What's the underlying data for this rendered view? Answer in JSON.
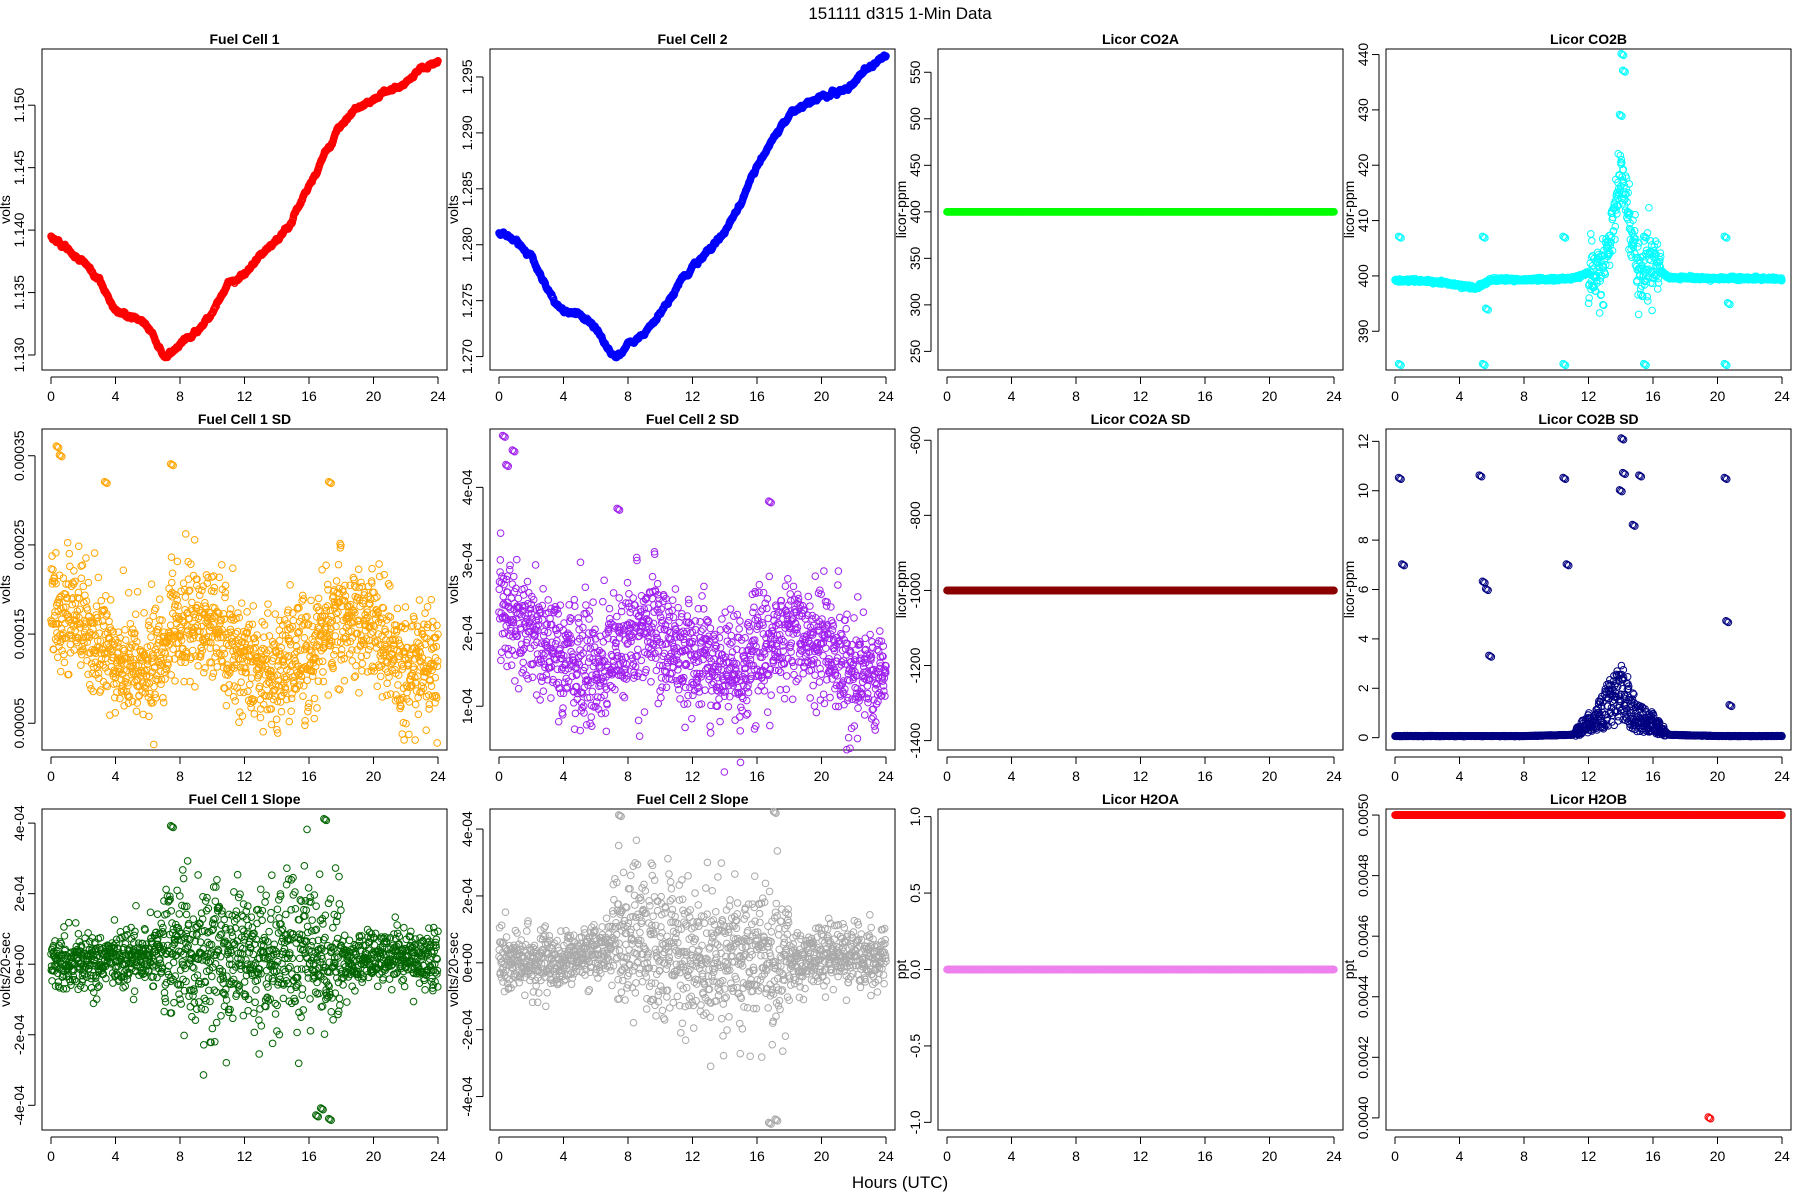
{
  "figure": {
    "title": "151111    d315    1-Min Data",
    "xlabel": "Hours (UTC)"
  },
  "chart_data": [
    {
      "type": "scatter",
      "title": "Fuel Cell 1",
      "ylabel": "volts",
      "xlim": [
        0,
        24
      ],
      "ylim": [
        1.1288,
        1.1545
      ],
      "yticks": [
        1.13,
        1.135,
        1.14,
        1.145,
        1.15
      ],
      "ytick_labels": [
        "1.130",
        "1.135",
        "1.140",
        "1.145",
        "1.150"
      ],
      "color": "#ff0000",
      "x": [
        0,
        1,
        2,
        3,
        4,
        5,
        6,
        7,
        7.5,
        8,
        9,
        10,
        11,
        12,
        13,
        14,
        15,
        16,
        17,
        18,
        19,
        20,
        21,
        22,
        23,
        24
      ],
      "series": [
        {
          "values": [
            1.1395,
            1.1385,
            1.1375,
            1.136,
            1.1335,
            1.133,
            1.1325,
            1.1298,
            1.1302,
            1.1308,
            1.1318,
            1.1335,
            1.1358,
            1.1365,
            1.1378,
            1.1392,
            1.1408,
            1.1435,
            1.1462,
            1.1485,
            1.1498,
            1.1505,
            1.1512,
            1.1518,
            1.153,
            1.1535
          ]
        }
      ]
    },
    {
      "type": "scatter",
      "title": "Fuel Cell 2",
      "ylabel": "volts",
      "xlim": [
        0,
        24
      ],
      "ylim": [
        1.2688,
        1.2975
      ],
      "yticks": [
        1.27,
        1.275,
        1.28,
        1.285,
        1.29,
        1.295
      ],
      "ytick_labels": [
        "1.270",
        "1.275",
        "1.280",
        "1.285",
        "1.290",
        "1.295"
      ],
      "color": "#0000ff",
      "x": [
        0,
        1,
        2,
        3,
        4,
        5,
        6,
        7,
        7.5,
        8,
        9,
        10,
        11,
        12,
        13,
        14,
        15,
        16,
        17,
        18,
        19,
        20,
        21,
        22,
        23,
        24
      ],
      "series": [
        {
          "values": [
            1.281,
            1.2805,
            1.279,
            1.276,
            1.274,
            1.2738,
            1.2725,
            1.2702,
            1.2702,
            1.271,
            1.272,
            1.2738,
            1.2762,
            1.278,
            1.2795,
            1.2812,
            1.2838,
            1.2868,
            1.2895,
            1.2915,
            1.2925,
            1.2932,
            1.2935,
            1.2945,
            1.296,
            1.2968
          ]
        }
      ]
    },
    {
      "type": "scatter",
      "title": "Licor CO2A",
      "ylabel": "licor-ppm",
      "xlim": [
        0,
        24
      ],
      "ylim": [
        230,
        575
      ],
      "yticks": [
        250,
        300,
        350,
        400,
        450,
        500,
        550
      ],
      "ytick_labels": [
        "250",
        "300",
        "350",
        "400",
        "450",
        "500",
        "550"
      ],
      "color": "#00ff00",
      "x": [
        0,
        24
      ],
      "series": [
        {
          "values": [
            400,
            400
          ]
        }
      ]
    },
    {
      "type": "scatter",
      "title": "Licor CO2B",
      "ylabel": "licor-ppm",
      "xlim": [
        0,
        24
      ],
      "ylim": [
        383,
        441
      ],
      "yticks": [
        390,
        400,
        410,
        420,
        430,
        440
      ],
      "ytick_labels": [
        "390",
        "400",
        "410",
        "420",
        "430",
        "440"
      ],
      "color": "#00ffff",
      "x": [
        0,
        1,
        2,
        3,
        4,
        5,
        6,
        7,
        8,
        9,
        10,
        11,
        12,
        13,
        13.5,
        14,
        14.5,
        15,
        15.5,
        16,
        17,
        18,
        19,
        20,
        21,
        22,
        23,
        24
      ],
      "series": [
        {
          "values": [
            399.2,
            399.1,
            399,
            398.8,
            398.3,
            397.8,
            399.3,
            399.3,
            399.3,
            399.4,
            399.4,
            399.5,
            400.5,
            402.5,
            408,
            420,
            410,
            402,
            400.5,
            401.5,
            399.7,
            399.6,
            399.6,
            399.5,
            399.6,
            399.5,
            399.5,
            399.4
          ]
        }
      ],
      "outliers": {
        "x": [
          0.3,
          0.3,
          5.5,
          5.5,
          10.5,
          10.5,
          15.5,
          15.5,
          20.5,
          20.5,
          14.1,
          14.2,
          14.0,
          5.7,
          20.7
        ],
        "y": [
          407,
          384,
          407,
          384,
          407,
          384,
          407,
          384,
          407,
          384,
          440,
          437,
          429,
          394,
          395
        ]
      }
    },
    {
      "type": "scatter",
      "title": "Fuel Cell 1 SD",
      "ylabel": "volts",
      "xlim": [
        0,
        24
      ],
      "ylim": [
        2e-05,
        0.00038
      ],
      "yticks": [
        5e-05,
        0.00015,
        0.00025,
        0.00035
      ],
      "ytick_labels": [
        "0.00005",
        "0.00015",
        "0.00025",
        "0.00035"
      ],
      "color": "#ffa500",
      "x": [
        0,
        2,
        4,
        6,
        8,
        10,
        12,
        14,
        16,
        18,
        20,
        22,
        24
      ],
      "series": [
        {
          "values": [
            0.00019,
            0.00016,
            0.00012,
            0.00011,
            0.00016,
            0.00016,
            0.00012,
            0.00011,
            0.00013,
            0.00017,
            0.00015,
            0.00011,
            0.00012
          ]
        }
      ],
      "outliers": {
        "x": [
          0.4,
          0.6,
          7.5,
          3.4,
          17.3
        ],
        "y": [
          0.00036,
          0.00035,
          0.00034,
          0.00032,
          0.00032
        ]
      }
    },
    {
      "type": "scatter",
      "title": "Fuel Cell 2 SD",
      "ylabel": "volts",
      "xlim": [
        0,
        24
      ],
      "ylim": [
        4e-05,
        0.00048
      ],
      "yticks": [
        0.0001,
        0.0002,
        0.0003,
        0.0004
      ],
      "ytick_labels": [
        "1e-04",
        "2e-04",
        "3e-04",
        "4e-04"
      ],
      "color": "#a020f0",
      "x": [
        0,
        2,
        4,
        6,
        8,
        10,
        12,
        14,
        16,
        18,
        20,
        22,
        24
      ],
      "series": [
        {
          "values": [
            0.00024,
            0.0002,
            0.00016,
            0.00015,
            0.0002,
            0.0002,
            0.00017,
            0.00015,
            0.00017,
            0.0002,
            0.00018,
            0.00014,
            0.00014
          ]
        }
      ],
      "outliers": {
        "x": [
          0.3,
          0.5,
          0.9,
          7.4,
          16.8
        ],
        "y": [
          0.00047,
          0.00043,
          0.00045,
          0.00037,
          0.00038
        ]
      }
    },
    {
      "type": "scatter",
      "title": "Licor CO2A SD",
      "ylabel": "licor-ppm",
      "xlim": [
        0,
        24
      ],
      "ylim": [
        -1425,
        -570
      ],
      "yticks": [
        -1400,
        -1200,
        -1000,
        -800,
        -600
      ],
      "ytick_labels": [
        "-1400",
        "-1200",
        "-1000",
        "-800",
        "-600"
      ],
      "color": "#8b0000",
      "x": [
        0,
        24
      ],
      "series": [
        {
          "values": [
            -1000,
            -1000
          ]
        }
      ]
    },
    {
      "type": "scatter",
      "title": "Licor CO2B SD",
      "ylabel": "licor-ppm",
      "xlim": [
        0,
        24
      ],
      "ylim": [
        -0.5,
        12.5
      ],
      "yticks": [
        0,
        2,
        4,
        6,
        8,
        10,
        12
      ],
      "ytick_labels": [
        "0",
        "2",
        "4",
        "6",
        "8",
        "10",
        "12"
      ],
      "color": "#000080",
      "x": [
        0,
        4,
        8,
        11,
        12,
        13,
        14,
        14.5,
        15,
        16,
        17,
        20,
        24
      ],
      "series": [
        {
          "values": [
            0.05,
            0.05,
            0.05,
            0.1,
            0.6,
            1.2,
            1.8,
            1.5,
            0.8,
            0.6,
            0.1,
            0.05,
            0.05
          ]
        }
      ],
      "outliers": {
        "x": [
          0.3,
          0.5,
          5.3,
          5.5,
          5.7,
          5.9,
          10.5,
          10.7,
          14.0,
          14.1,
          14.2,
          14.8,
          15.2,
          20.5,
          20.6,
          20.8
        ],
        "y": [
          10.5,
          7,
          10.6,
          6.3,
          6,
          3.3,
          10.5,
          7,
          10,
          12.1,
          10.7,
          8.6,
          10.6,
          10.5,
          4.7,
          1.3
        ]
      }
    },
    {
      "type": "scatter",
      "title": "Fuel Cell 1 Slope",
      "ylabel": "volts/20-sec",
      "xlim": [
        0,
        24
      ],
      "ylim": [
        -0.00047,
        0.00044
      ],
      "yticks": [
        -0.0004,
        -0.0002,
        0,
        0.0002,
        0.0004
      ],
      "ytick_labels": [
        "-4e-04",
        "-2e-04",
        "0e+00",
        "2e-04",
        "4e-04"
      ],
      "color": "#006400",
      "x": [
        0,
        2,
        4,
        6,
        8,
        10,
        12,
        14,
        16,
        18,
        20,
        22,
        24
      ],
      "series": [
        {
          "values": [
            1e-05,
            0,
            1e-05,
            3e-05,
            5e-05,
            3e-05,
            2e-05,
            2e-05,
            3e-05,
            1e-05,
            2e-05,
            2e-05,
            2e-05
          ]
        }
      ],
      "outliers": {
        "x": [
          7.5,
          17.0,
          17.3,
          16.5,
          16.8
        ],
        "y": [
          0.00039,
          0.00041,
          -0.00044,
          -0.00043,
          -0.00041
        ]
      }
    },
    {
      "type": "scatter",
      "title": "Fuel Cell 2 Slope",
      "ylabel": "volts/20-sec",
      "xlim": [
        0,
        24
      ],
      "ylim": [
        -0.0005,
        0.00046
      ],
      "yticks": [
        -0.0004,
        -0.0002,
        0,
        0.0002,
        0.0004
      ],
      "ytick_labels": [
        "-4e-04",
        "-2e-04",
        "0e+00",
        "2e-04",
        "4e-04"
      ],
      "color": "#a9a9a9",
      "x": [
        0,
        2,
        4,
        6,
        8,
        10,
        12,
        14,
        16,
        18,
        20,
        22,
        24
      ],
      "series": [
        {
          "values": [
            1e-05,
            0,
            1e-05,
            3e-05,
            6e-05,
            4e-05,
            2e-05,
            2e-05,
            3e-05,
            1e-05,
            2e-05,
            2e-05,
            2e-05
          ]
        }
      ],
      "outliers": {
        "x": [
          7.5,
          17.1,
          16.8,
          17.2
        ],
        "y": [
          0.00044,
          0.00045,
          -0.00048,
          -0.00047
        ]
      }
    },
    {
      "type": "scatter",
      "title": "Licor H2OA",
      "ylabel": "ppt",
      "xlim": [
        0,
        24
      ],
      "ylim": [
        -1.05,
        1.05
      ],
      "yticks": [
        -1.0,
        -0.5,
        0,
        0.5,
        1.0
      ],
      "ytick_labels": [
        "-1.0",
        "-0.5",
        "0.0",
        "0.5",
        "1.0"
      ],
      "color": "#ee82ee",
      "x": [
        0,
        24
      ],
      "series": [
        {
          "values": [
            0,
            0
          ]
        }
      ]
    },
    {
      "type": "scatter",
      "title": "Licor H2OB",
      "ylabel": "ppt",
      "xlim": [
        0,
        24
      ],
      "ylim": [
        0.00396,
        0.00502
      ],
      "yticks": [
        0.004,
        0.0042,
        0.0044,
        0.0046,
        0.0048,
        0.005
      ],
      "ytick_labels": [
        "0.0040",
        "0.0042",
        "0.0044",
        "0.0046",
        "0.0048",
        "0.0050"
      ],
      "color": "#ff0000",
      "x": [
        0,
        24
      ],
      "series": [
        {
          "values": [
            0.005,
            0.005
          ]
        }
      ],
      "outliers": {
        "x": [
          19.5
        ],
        "y": [
          0.004
        ]
      }
    }
  ]
}
